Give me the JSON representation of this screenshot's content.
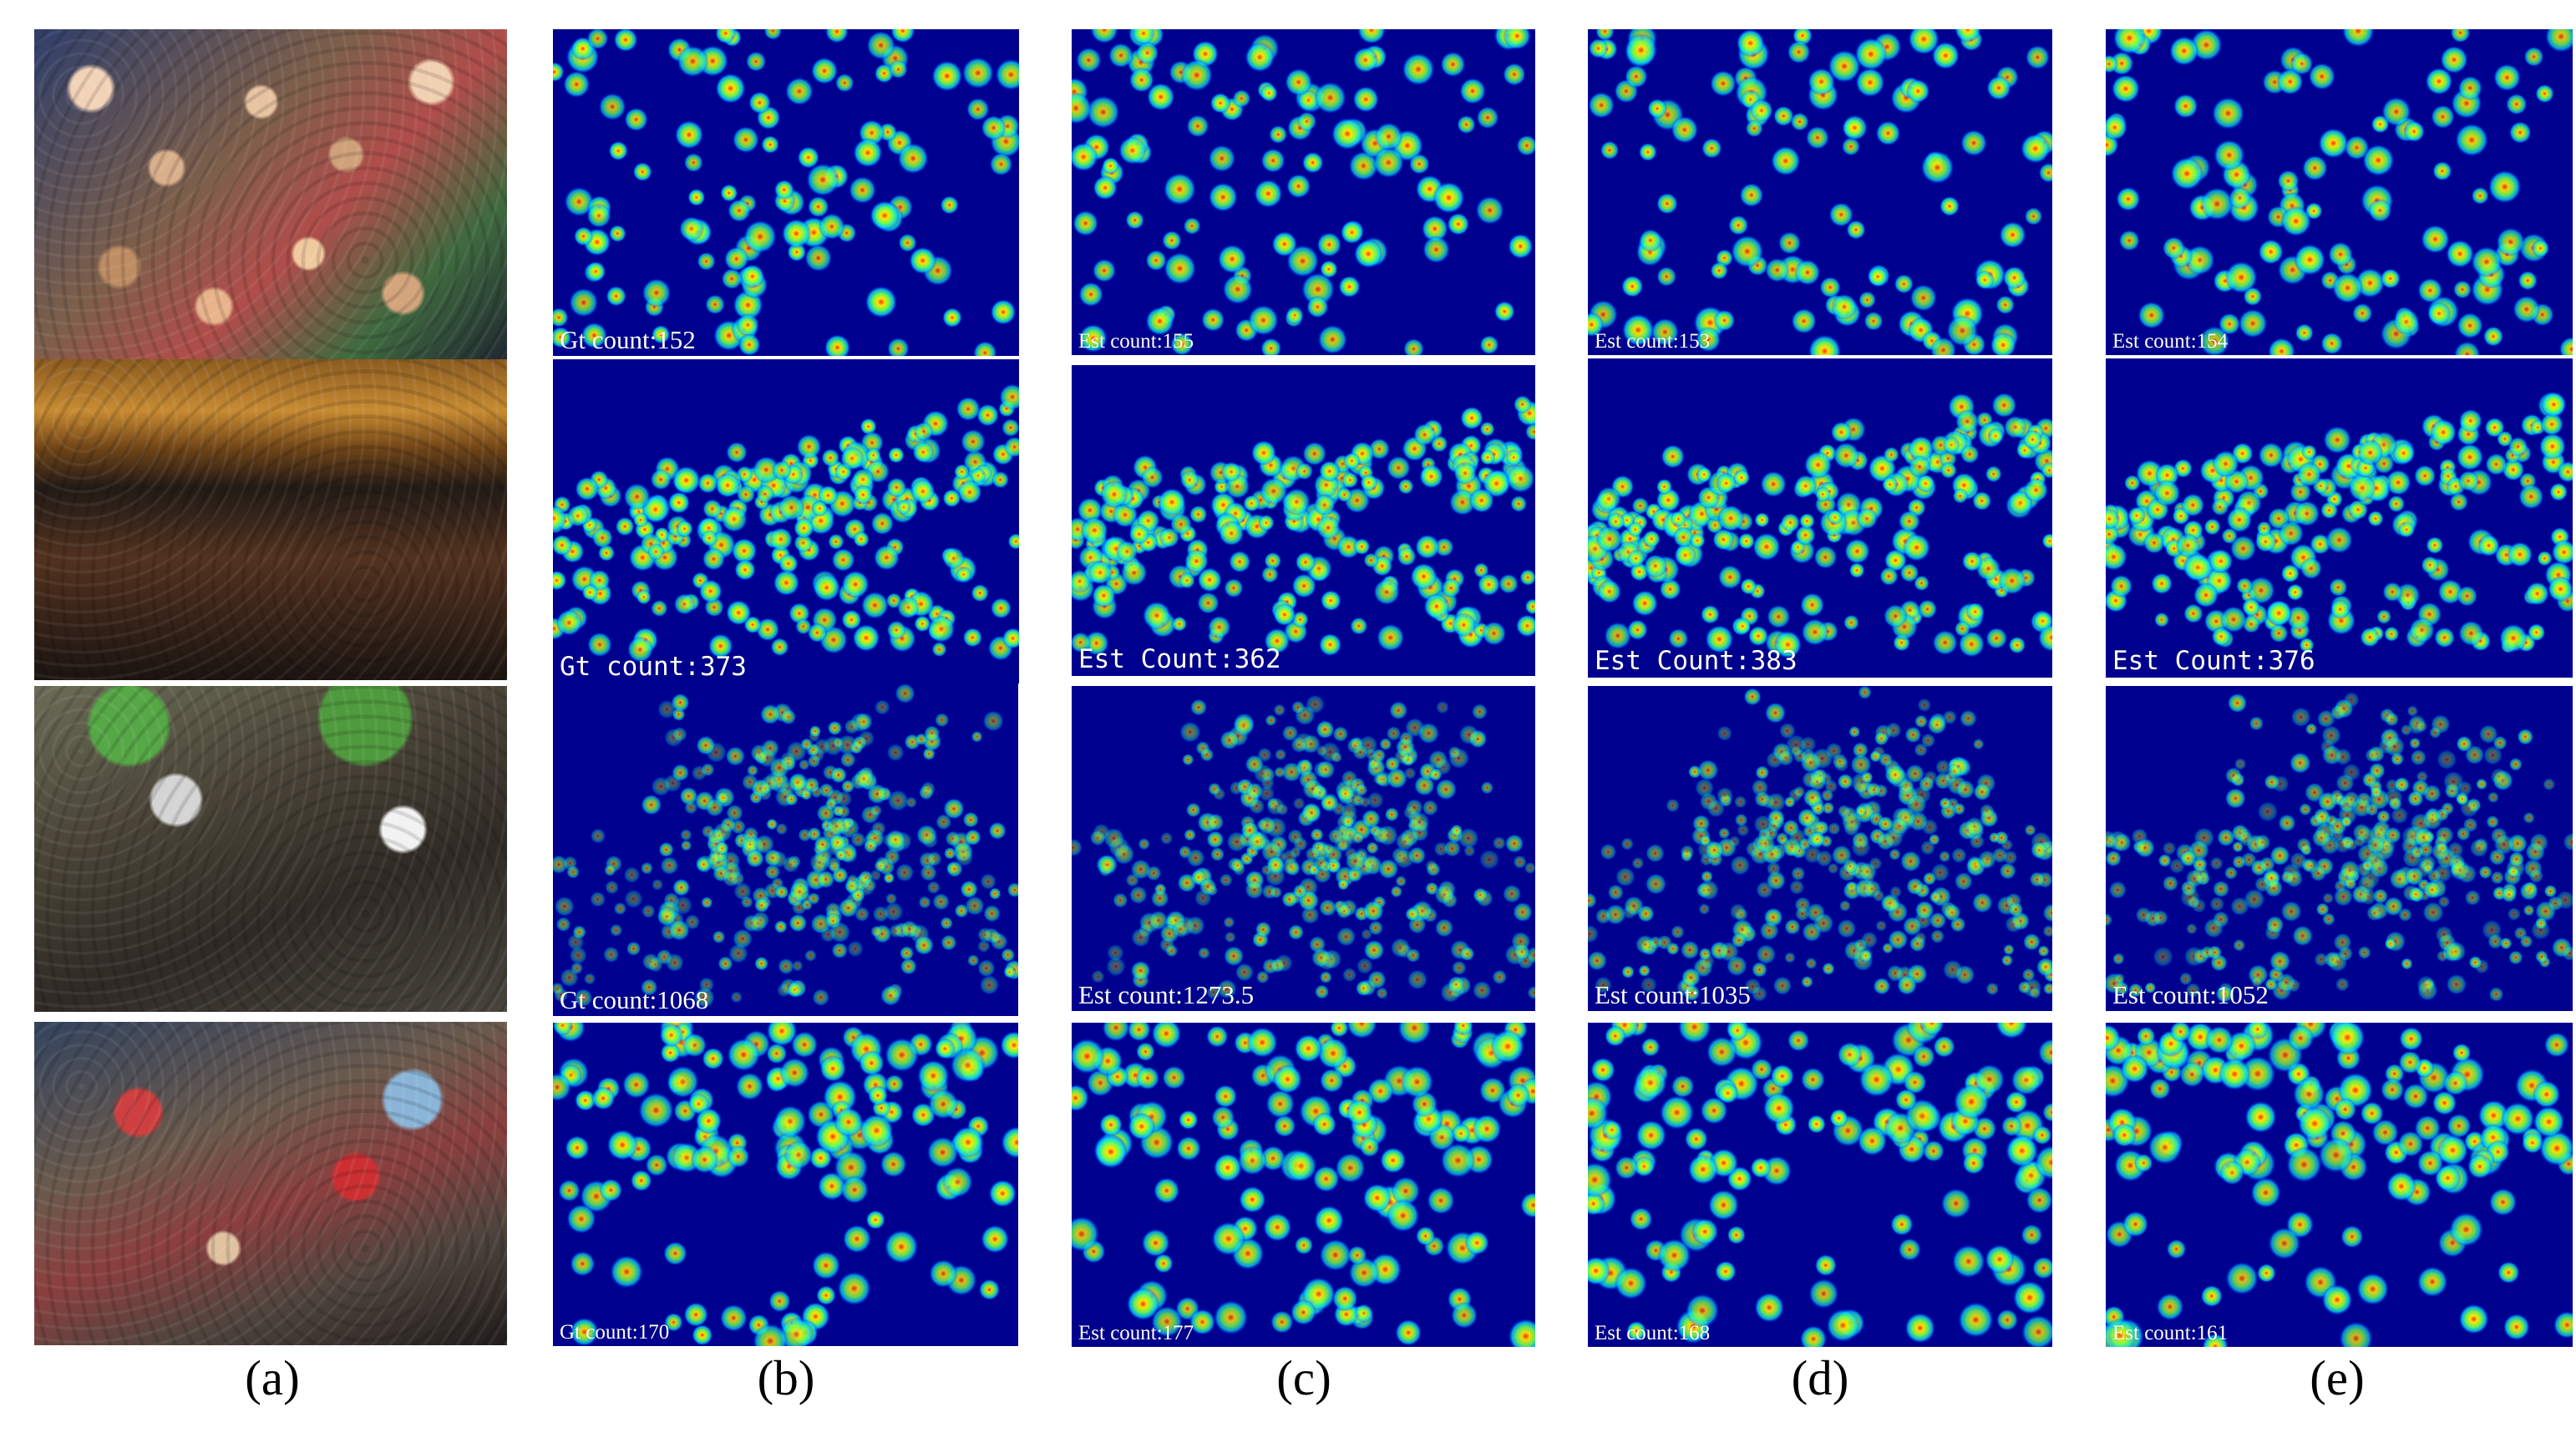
{
  "panel_labels": [
    "(a)",
    "(b)",
    "(c)",
    "(d)",
    "(e)"
  ],
  "counts": [
    [
      "Gt count:152",
      "Est count:155",
      "Est count:153",
      "Est count:154"
    ],
    [
      "Gt count:373",
      "Est Count:362",
      "Est Count:383",
      "Est Count:376"
    ],
    [
      "Gt count:1068",
      "Est count:1273.5",
      "Est count:1035",
      "Est count:1052"
    ],
    [
      "Gt count:170",
      "Est count:177",
      "Est count:168",
      "Est count:161"
    ]
  ],
  "colors": {
    "heatmap_background": "#00008e",
    "spot_cyan": "#00d7ff",
    "spot_green": "#6dff52",
    "spot_yellow": "#ffe600",
    "spot_red": "#ff2a00"
  },
  "icons": {
    "photo": "crowd-photo",
    "map": "density-map"
  }
}
